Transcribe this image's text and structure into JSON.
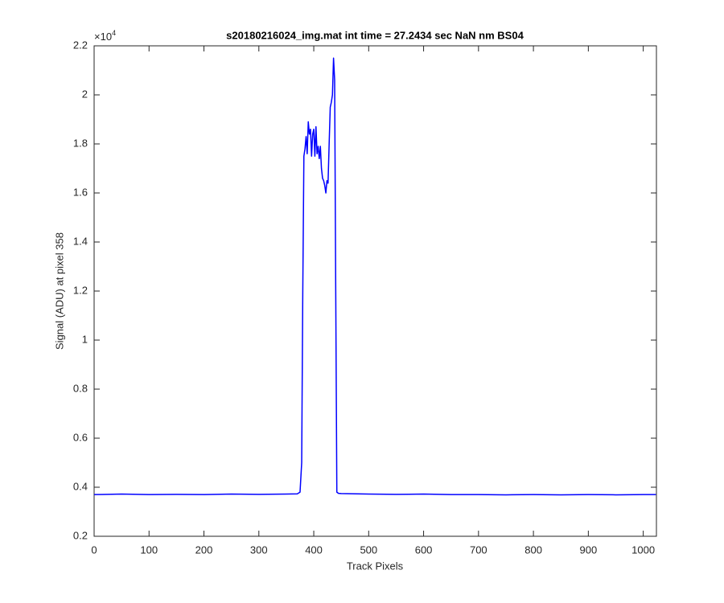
{
  "chart_data": {
    "type": "line",
    "title": "s20180216024_img.mat int time = 27.2434 sec  NaN nm BS04",
    "x_label": "Track Pixels",
    "y_label": "Signal (ADU) at pixel 358",
    "y_multiplier": {
      "base": "×10",
      "exponent": "4"
    },
    "color": "#0000ff",
    "x": [
      0,
      50,
      100,
      150,
      200,
      250,
      300,
      350,
      370,
      375,
      378,
      380,
      382,
      384,
      386,
      388,
      390,
      392,
      394,
      396,
      398,
      400,
      402,
      404,
      406,
      408,
      410,
      412,
      414,
      416,
      418,
      420,
      422,
      424,
      426,
      428,
      430,
      432,
      434,
      436,
      438,
      440,
      442,
      445,
      450,
      500,
      550,
      600,
      650,
      700,
      750,
      800,
      850,
      900,
      950,
      1000,
      1023
    ],
    "values": [
      0.37,
      0.372,
      0.37,
      0.371,
      0.37,
      0.372,
      0.371,
      0.372,
      0.373,
      0.38,
      0.5,
      1.2,
      1.75,
      1.78,
      1.83,
      1.76,
      1.89,
      1.84,
      1.86,
      1.75,
      1.84,
      1.86,
      1.75,
      1.87,
      1.76,
      1.79,
      1.74,
      1.79,
      1.7,
      1.66,
      1.65,
      1.63,
      1.6,
      1.65,
      1.64,
      1.8,
      1.95,
      1.97,
      2.0,
      2.15,
      2.06,
      1.2,
      0.38,
      0.375,
      0.374,
      0.372,
      0.371,
      0.372,
      0.37,
      0.37,
      0.369,
      0.37,
      0.369,
      0.37,
      0.369,
      0.37,
      0.37
    ],
    "xlim": [
      0,
      1024
    ],
    "ylim": [
      0.2,
      2.2
    ],
    "xticks": [
      0,
      100,
      200,
      300,
      400,
      500,
      600,
      700,
      800,
      900,
      1000
    ],
    "yticks": [
      0.2,
      0.4,
      0.6,
      0.8,
      1,
      1.2,
      1.4,
      1.6,
      1.8,
      2,
      2.2
    ],
    "grid": false
  }
}
